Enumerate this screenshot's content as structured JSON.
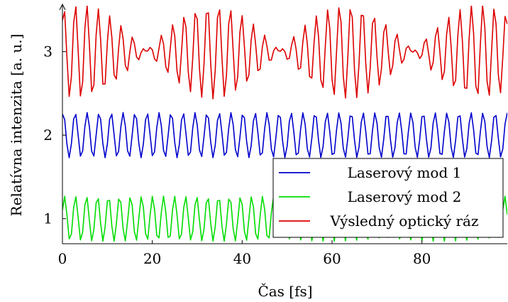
{
  "chart_data": {
    "type": "line",
    "title": "",
    "xlabel": "Čas [fs]",
    "ylabel": "Relatívna intenzita [a. u.]",
    "xlim": [
      0,
      99
    ],
    "ylim": [
      0.7,
      3.55
    ],
    "xticks": [
      0,
      20,
      40,
      60,
      80
    ],
    "yticks": [
      1,
      2,
      3
    ],
    "grid": false,
    "legend_position": "bottom-right",
    "x_step": 0.5,
    "series": [
      {
        "name": "Laserový mod 1",
        "color": "#0000cc",
        "offset": 2,
        "amplitude": 0.27,
        "period_fs": 2.67
      },
      {
        "name": "Laserový mod 2",
        "color": "#00dd00",
        "offset": 1,
        "amplitude": 0.27,
        "period_fs": 2.45
      },
      {
        "name": "Výsledný optický ráz",
        "color": "#dd0000",
        "offset": 3,
        "note_components": "sum of mode 1 and mode 2 oscillations",
        "beat_period_fs": 33.3
      }
    ]
  }
}
